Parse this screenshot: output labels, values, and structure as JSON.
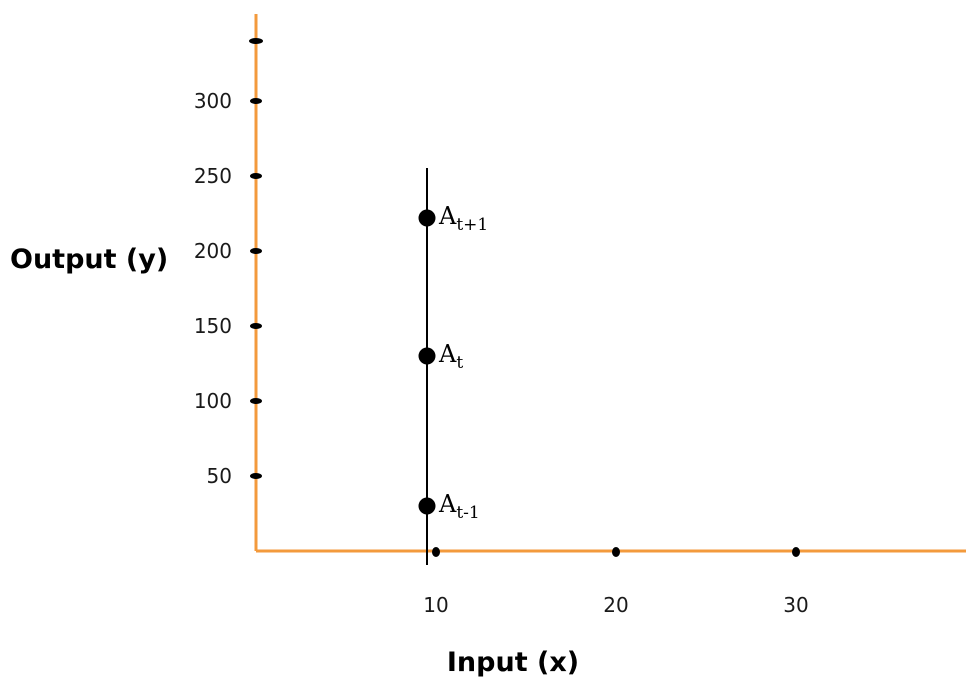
{
  "chart_data": {
    "type": "scatter",
    "title": "",
    "xlabel": "Input (x)",
    "ylabel": "Output (y)",
    "xlim": [
      0,
      40
    ],
    "ylim": [
      0,
      340
    ],
    "x_ticks": [
      10,
      20,
      30
    ],
    "y_ticks": [
      50,
      100,
      150,
      200,
      250,
      300
    ],
    "vertical_line_x": 9.5,
    "grid": false,
    "axis_color": "#f39a3c",
    "point_color": "#000000",
    "points": [
      {
        "x": 9.5,
        "y": 222,
        "label_base": "A",
        "label_sub": "t+1"
      },
      {
        "x": 9.5,
        "y": 130,
        "label_base": "A",
        "label_sub": "t"
      },
      {
        "x": 9.5,
        "y": 30,
        "label_base": "A",
        "label_sub": "t-1"
      }
    ]
  }
}
